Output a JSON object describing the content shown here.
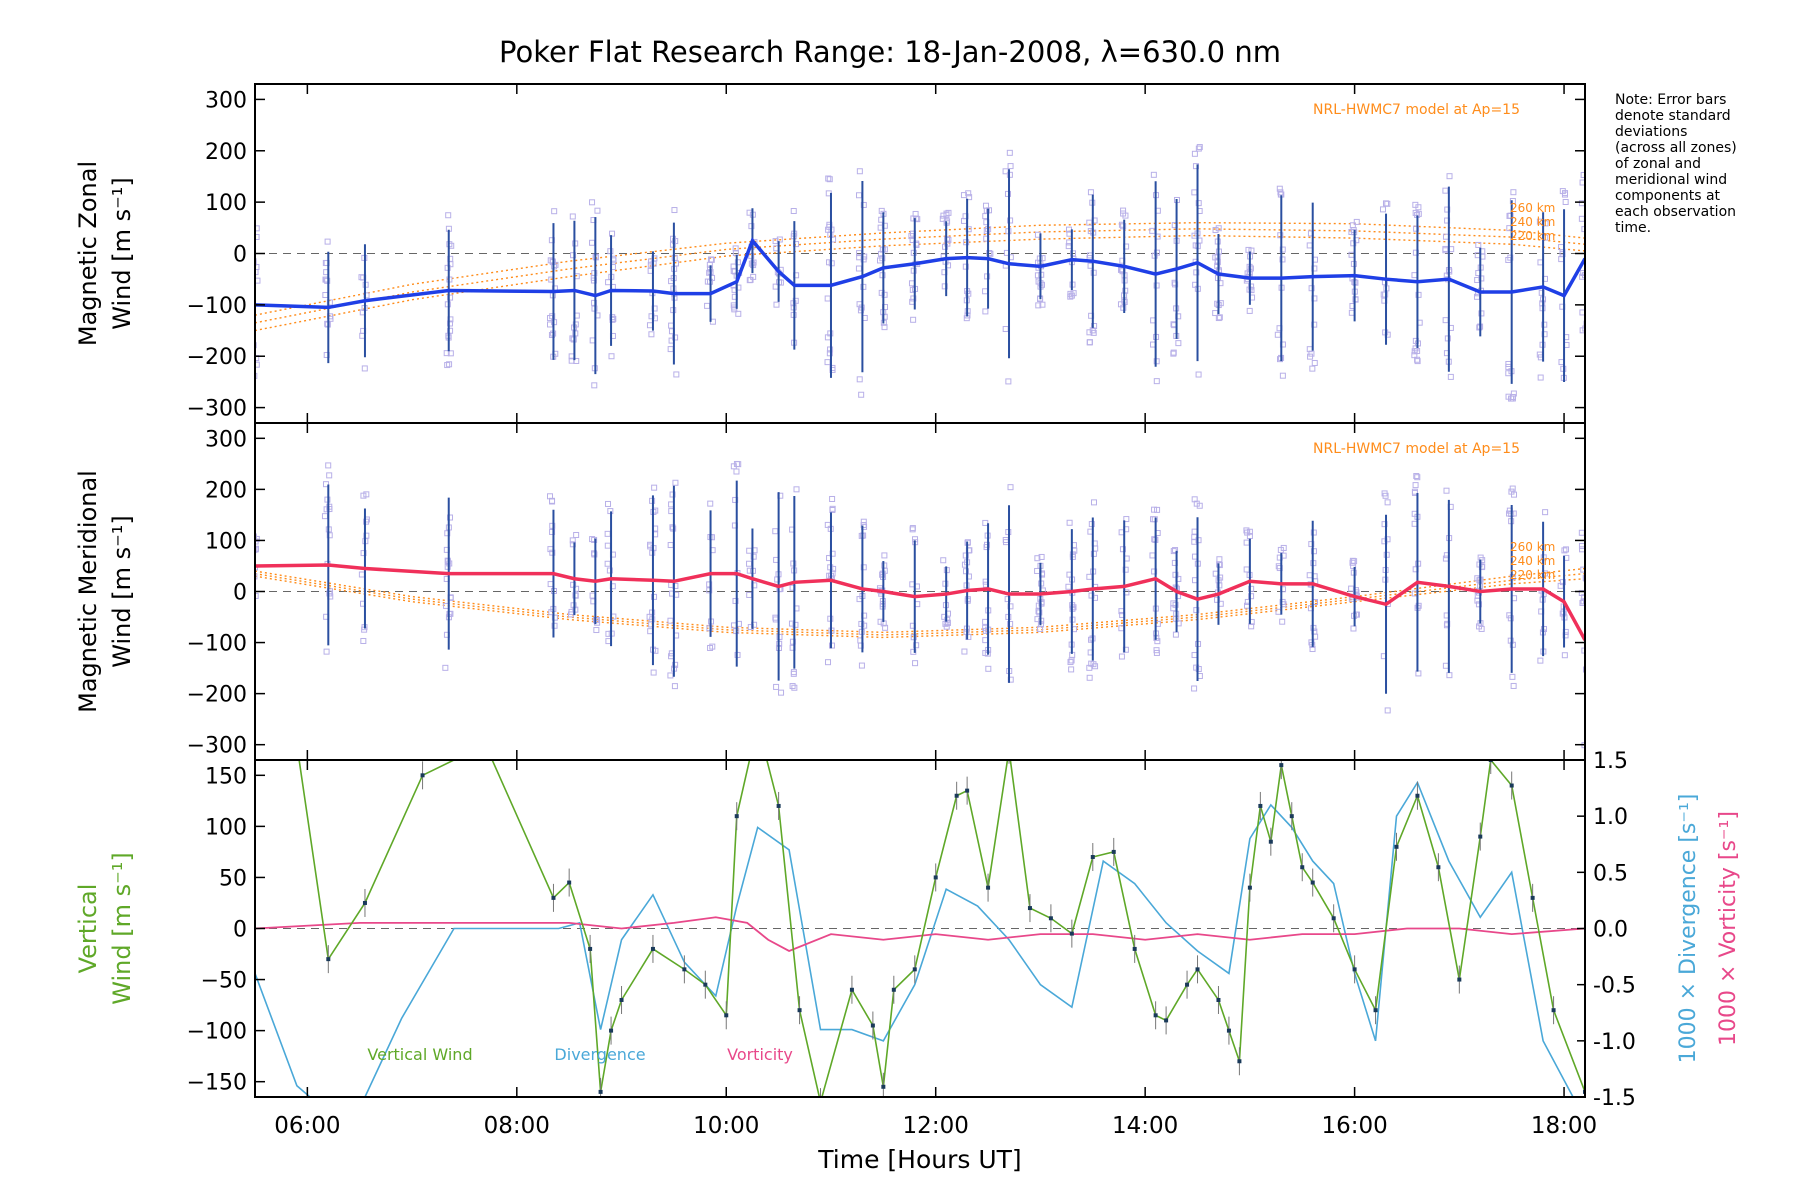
{
  "title": "Poker Flat Research Range: 18-Jan-2008, λ=630.0 nm",
  "note_lines": [
    "Note: Error bars",
    "denote standard",
    "deviations",
    "(across all zones)",
    "of zonal and",
    "meridional wind",
    "components at",
    "each observation",
    "time."
  ],
  "xlabel": "Time [Hours UT]",
  "colors": {
    "zonal": "#1f3fe6",
    "meridional": "#f0305a",
    "model": "#ff8c1a",
    "vertical": "#5fa828",
    "divergence": "#4aa8d8",
    "vorticity": "#e8488a",
    "scatter": "#b8b0e8",
    "errorbar": "#2a4fa0"
  },
  "chart_data": [
    {
      "type": "line",
      "panel": "zonal",
      "ylabel": [
        "Magnetic Zonal",
        "Wind [m s⁻¹]"
      ],
      "xlim": [
        5.5,
        18.2
      ],
      "ylim": [
        -330,
        330
      ],
      "yticks": [
        -300,
        -200,
        -100,
        0,
        100,
        200,
        300
      ],
      "xticks": [
        "06:00",
        "08:00",
        "10:00",
        "12:00",
        "14:00",
        "16:00",
        "18:00"
      ],
      "model_label": "NRL-HWMC7 model at Ap=15",
      "model_alts": [
        "260 km",
        "240 km",
        "220 km"
      ],
      "series": [
        {
          "x": [
            5.5,
            6.2,
            6.55,
            7.35,
            8.35,
            8.55,
            8.75,
            8.9,
            9.3,
            9.5,
            9.85,
            10.1,
            10.25,
            10.5,
            10.65,
            11.0,
            11.3,
            11.5,
            11.8,
            12.1,
            12.3,
            12.5,
            12.7,
            13.0,
            13.3,
            13.5,
            13.8,
            14.1,
            14.3,
            14.5,
            14.7,
            15.0,
            15.3,
            15.6,
            16.0,
            16.3,
            16.6,
            16.9,
            17.2,
            17.5,
            17.8,
            18.0,
            18.2
          ],
          "y": [
            -100,
            -105,
            -92,
            -72,
            -74,
            -72,
            -82,
            -72,
            -73,
            -78,
            -78,
            -55,
            25,
            -35,
            -62,
            -62,
            -45,
            -28,
            -20,
            -10,
            -8,
            -10,
            -20,
            -25,
            -12,
            -15,
            -25,
            -40,
            -30,
            -18,
            -40,
            -48,
            -48,
            -45,
            -43,
            -50,
            -55,
            -50,
            -75,
            -75,
            -65,
            -82,
            -10
          ]
        }
      ],
      "models": [
        {
          "alt": "260 km",
          "x": [
            5.5,
            7.0,
            8.5,
            10.0,
            11.5,
            13.0,
            14.5,
            16.0,
            17.5,
            18.2
          ],
          "y": [
            -120,
            -60,
            -15,
            20,
            40,
            55,
            60,
            58,
            45,
            30
          ]
        },
        {
          "alt": "240 km",
          "x": [
            5.5,
            7.0,
            8.5,
            10.0,
            11.5,
            13.0,
            14.5,
            16.0,
            17.5,
            18.2
          ],
          "y": [
            -135,
            -75,
            -30,
            8,
            28,
            42,
            48,
            44,
            32,
            18
          ]
        },
        {
          "alt": "220 km",
          "x": [
            5.5,
            7.0,
            8.5,
            10.0,
            11.5,
            13.0,
            14.5,
            16.0,
            17.5,
            18.2
          ],
          "y": [
            -150,
            -90,
            -45,
            -5,
            15,
            28,
            35,
            30,
            18,
            5
          ]
        }
      ]
    },
    {
      "type": "line",
      "panel": "meridional",
      "ylabel": [
        "Magnetic Meridional",
        "Wind [m s⁻¹]"
      ],
      "xlim": [
        5.5,
        18.2
      ],
      "ylim": [
        -330,
        330
      ],
      "yticks": [
        -300,
        -200,
        -100,
        0,
        100,
        200,
        300
      ],
      "xticks": [
        "06:00",
        "08:00",
        "10:00",
        "12:00",
        "14:00",
        "16:00",
        "18:00"
      ],
      "model_label": "NRL-HWMC7 model at Ap=15",
      "model_alts": [
        "260 km",
        "240 km",
        "220 km"
      ],
      "series": [
        {
          "x": [
            5.5,
            6.2,
            6.55,
            7.35,
            8.35,
            8.55,
            8.75,
            8.9,
            9.3,
            9.5,
            9.85,
            10.1,
            10.25,
            10.5,
            10.65,
            11.0,
            11.3,
            11.5,
            11.8,
            12.1,
            12.3,
            12.5,
            12.7,
            13.0,
            13.3,
            13.5,
            13.8,
            14.1,
            14.3,
            14.5,
            14.7,
            15.0,
            15.3,
            15.6,
            16.0,
            16.3,
            16.6,
            16.9,
            17.2,
            17.5,
            17.8,
            18.0,
            18.2
          ],
          "y": [
            50,
            52,
            45,
            35,
            35,
            25,
            20,
            25,
            22,
            20,
            35,
            35,
            25,
            10,
            18,
            22,
            5,
            0,
            -10,
            -5,
            2,
            5,
            -5,
            -5,
            0,
            5,
            10,
            25,
            0,
            -15,
            -5,
            20,
            15,
            15,
            -10,
            -25,
            18,
            10,
            0,
            5,
            5,
            -20,
            -95
          ]
        }
      ],
      "models": [
        {
          "alt": "260 km",
          "x": [
            5.5,
            7.0,
            8.5,
            10.0,
            11.5,
            13.0,
            14.5,
            16.0,
            17.5,
            18.2
          ],
          "y": [
            40,
            -10,
            -45,
            -70,
            -80,
            -70,
            -45,
            -10,
            30,
            45
          ]
        },
        {
          "alt": "240 km",
          "x": [
            5.5,
            7.0,
            8.5,
            10.0,
            11.5,
            13.0,
            14.5,
            16.0,
            17.5,
            18.2
          ],
          "y": [
            35,
            -15,
            -50,
            -75,
            -85,
            -75,
            -50,
            -15,
            22,
            35
          ]
        },
        {
          "alt": "220 km",
          "x": [
            5.5,
            7.0,
            8.5,
            10.0,
            11.5,
            13.0,
            14.5,
            16.0,
            17.5,
            18.2
          ],
          "y": [
            30,
            -20,
            -55,
            -80,
            -90,
            -80,
            -55,
            -20,
            15,
            25
          ]
        }
      ]
    },
    {
      "type": "line",
      "panel": "vertical",
      "ylabel_left": [
        "Vertical",
        "Wind [m s⁻¹]"
      ],
      "ylabel_right": [
        "1000 × Divergence [s⁻¹]",
        "1000 × Vorticity [s⁻¹]"
      ],
      "xlim": [
        5.5,
        18.2
      ],
      "ylim": [
        -165,
        165
      ],
      "ylim_right": [
        -1.5,
        1.5
      ],
      "yticks": [
        -150,
        -100,
        -50,
        0,
        50,
        100,
        150
      ],
      "yticks_right": [
        "-1.5",
        "-1.0",
        "-0.5",
        "0.0",
        "0.5",
        "1.0",
        "1.5"
      ],
      "xticks": [
        "06:00",
        "08:00",
        "10:00",
        "12:00",
        "14:00",
        "16:00",
        "18:00"
      ],
      "legend": [
        "Vertical Wind",
        "Divergence",
        "Vorticity"
      ],
      "series": [
        {
          "name": "Vertical Wind",
          "x": [
            5.9,
            6.2,
            6.55,
            7.1,
            7.7,
            8.35,
            8.5,
            8.7,
            8.8,
            8.9,
            9.0,
            9.3,
            9.6,
            9.8,
            10.0,
            10.1,
            10.3,
            10.5,
            10.7,
            10.9,
            11.2,
            11.4,
            11.5,
            11.6,
            11.8,
            12.0,
            12.2,
            12.3,
            12.5,
            12.7,
            12.9,
            13.1,
            13.3,
            13.5,
            13.7,
            13.9,
            14.1,
            14.2,
            14.4,
            14.5,
            14.7,
            14.8,
            14.9,
            15.0,
            15.1,
            15.2,
            15.3,
            15.4,
            15.5,
            15.6,
            15.8,
            16.0,
            16.2,
            16.4,
            16.6,
            16.8,
            17.0,
            17.2,
            17.3,
            17.5,
            17.7,
            17.9,
            18.2
          ],
          "y": [
            180,
            -30,
            25,
            150,
            180,
            30,
            45,
            -20,
            -160,
            -100,
            -70,
            -20,
            -40,
            -55,
            -85,
            110,
            200,
            120,
            -80,
            -170,
            -60,
            -95,
            -155,
            -60,
            -40,
            50,
            130,
            135,
            40,
            175,
            20,
            10,
            -5,
            70,
            75,
            -20,
            -85,
            -90,
            -55,
            -40,
            -70,
            -100,
            -130,
            40,
            120,
            85,
            160,
            110,
            60,
            45,
            10,
            -40,
            -80,
            80,
            130,
            60,
            -50,
            90,
            165,
            140,
            30,
            -80,
            -160
          ]
        },
        {
          "name": "Divergence",
          "x": [
            5.5,
            5.9,
            6.4,
            6.9,
            7.4,
            7.9,
            8.4,
            8.6,
            8.8,
            9.0,
            9.3,
            9.6,
            9.9,
            10.1,
            10.3,
            10.6,
            10.9,
            11.2,
            11.5,
            11.8,
            12.1,
            12.4,
            12.7,
            13.0,
            13.3,
            13.6,
            13.9,
            14.2,
            14.5,
            14.8,
            15.0,
            15.2,
            15.4,
            15.6,
            15.8,
            16.0,
            16.2,
            16.4,
            16.6,
            16.9,
            17.2,
            17.5,
            17.8,
            18.2
          ],
          "y": [
            -0.4,
            -1.4,
            -1.8,
            -0.8,
            0.0,
            0.0,
            0.0,
            0.05,
            -0.9,
            -0.1,
            0.3,
            -0.3,
            -0.6,
            0.2,
            0.9,
            0.7,
            -0.9,
            -0.9,
            -1.0,
            -0.5,
            0.35,
            0.2,
            -0.1,
            -0.5,
            -0.7,
            0.6,
            0.4,
            0.05,
            -0.2,
            -0.4,
            0.8,
            1.1,
            0.9,
            0.6,
            0.4,
            -0.4,
            -1.0,
            1.0,
            1.3,
            0.6,
            0.1,
            0.5,
            -1.0,
            -1.7
          ]
        },
        {
          "name": "Vorticity",
          "x": [
            5.5,
            6.5,
            7.5,
            8.5,
            9.0,
            9.5,
            9.9,
            10.2,
            10.4,
            10.6,
            11.0,
            11.5,
            12.0,
            12.5,
            13.0,
            13.5,
            14.0,
            14.5,
            15.0,
            15.5,
            16.0,
            16.5,
            17.0,
            17.5,
            18.2
          ],
          "y": [
            0.0,
            0.05,
            0.05,
            0.05,
            0.0,
            0.05,
            0.1,
            0.05,
            -0.1,
            -0.2,
            -0.05,
            -0.1,
            -0.05,
            -0.1,
            -0.05,
            -0.05,
            -0.1,
            -0.05,
            -0.1,
            -0.05,
            -0.05,
            0.0,
            0.0,
            -0.05,
            0.0
          ]
        }
      ]
    }
  ]
}
